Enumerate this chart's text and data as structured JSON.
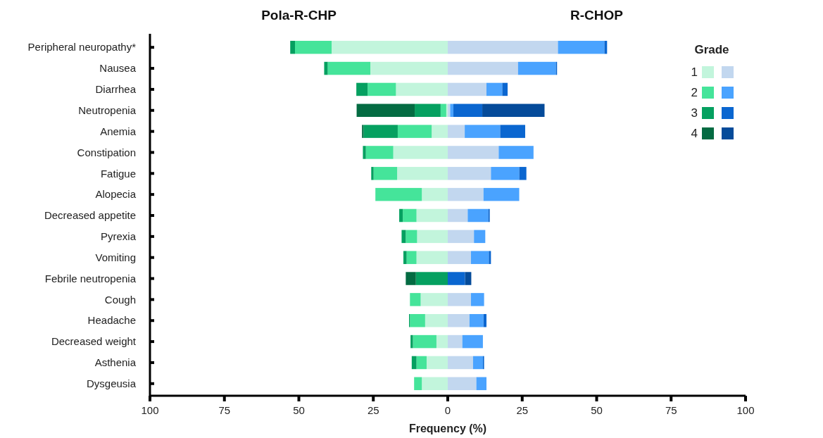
{
  "chart_data": {
    "type": "bar",
    "orientation": "horizontal",
    "stacked": true,
    "annotations": [
      "Pola-R-CHP",
      "R-CHOP"
    ],
    "xlabel": "Frequency (%)",
    "legend_title": "Grade",
    "legend": "top right",
    "grid": false,
    "categories": [
      "Peripheral neuropathy*",
      "Nausea",
      "Diarrhea",
      "Neutropenia",
      "Anemia",
      "Constipation",
      "Fatigue",
      "Alopecia",
      "Decreased appetite",
      "Pyrexia",
      "Vomiting",
      "Febrile neutropenia",
      "Cough",
      "Headache",
      "Decreased weight",
      "Asthenia",
      "Dysgeusia"
    ],
    "xlim": [
      -100,
      100
    ],
    "xticks": [
      {
        "value": -100,
        "label": "100"
      },
      {
        "value": -75,
        "label": "75"
      },
      {
        "value": -50,
        "label": "50"
      },
      {
        "value": -25,
        "label": "25"
      },
      0,
      25,
      50,
      75,
      100
    ],
    "series": [
      {
        "name": "1",
        "color": "#c2f5dc",
        "values": [
          -39,
          -26,
          -17.4,
          -0.5,
          -5.4,
          -18.3,
          -17,
          -8.7,
          -10.5,
          -10.3,
          -10.5,
          null,
          -9.1,
          -7.6,
          -3.8,
          -7.1,
          -8.7
        ]
      },
      {
        "name": "2",
        "color": "#45e49a",
        "values": [
          -12.3,
          -14.3,
          -9.5,
          -1.9,
          -11.4,
          -9.2,
          -7.9,
          -15.6,
          -4.6,
          -3.8,
          -3.3,
          null,
          -3.6,
          -5.1,
          -7.9,
          -3.4,
          -2.6
        ]
      },
      {
        "name": "3",
        "color": "#05a060",
        "values": [
          -1.6,
          -1.2,
          -3.8,
          -8.7,
          -11.5,
          -1,
          -0.8,
          null,
          -1.2,
          -1.4,
          -1.1,
          -10.7,
          null,
          -0.3,
          -0.8,
          -1.6,
          null
        ]
      },
      {
        "name": "4",
        "color": "#046b42",
        "values": [
          null,
          null,
          null,
          -19.5,
          -0.5,
          null,
          null,
          null,
          null,
          null,
          null,
          -3.4,
          null,
          null,
          null,
          null,
          null
        ]
      },
      {
        "color": "#c2d7ef",
        "values": [
          37,
          23.6,
          13,
          0.8,
          5.7,
          17.1,
          14.5,
          12,
          6.7,
          8.8,
          7.8,
          null,
          7.8,
          7.3,
          4.9,
          8.5,
          9.6
        ]
      },
      {
        "color": "#4aa3ff",
        "values": [
          15.6,
          12.7,
          5.3,
          1.1,
          11.9,
          11.7,
          9.5,
          12,
          6.9,
          3.8,
          6,
          null,
          4.4,
          4.7,
          6.9,
          3.3,
          3.4
        ]
      },
      {
        "color": "#0a66d0",
        "values": [
          0.9,
          0.4,
          1.8,
          9.7,
          8.4,
          null,
          2.4,
          null,
          0.5,
          null,
          0.7,
          5.8,
          null,
          1,
          null,
          0.4,
          null
        ]
      },
      {
        "color": "#054b9a",
        "values": [
          null,
          null,
          null,
          20.9,
          null,
          null,
          null,
          null,
          null,
          null,
          null,
          2.1,
          null,
          null,
          null,
          null,
          null
        ]
      }
    ]
  }
}
